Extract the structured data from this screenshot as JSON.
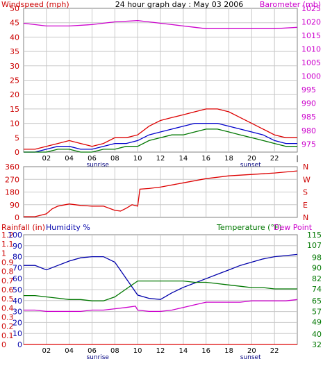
{
  "chart_data": [
    {
      "type": "line",
      "title": "24 hour graph day : May 03 2006",
      "left_label": "Windspeed (mph)",
      "right_label": "Barometer (mb)",
      "x_ticks": [
        "02",
        "04",
        "06",
        "08",
        "10",
        "12",
        "14",
        "16",
        "18",
        "20",
        "22",
        "|"
      ],
      "x_markers": {
        "sunrise": "sunrise",
        "sunset": "sunset"
      },
      "y_left_ticks": [
        "50",
        "45",
        "40",
        "35",
        "30",
        "25",
        "20",
        "15",
        "10",
        "5",
        "0"
      ],
      "y_left_range": [
        0,
        50
      ],
      "y_right_ticks": [
        "1025",
        "1020",
        "1015",
        "1010",
        "1005",
        "1000",
        "995",
        "990",
        "985",
        "980",
        "975"
      ],
      "y_right_range": [
        972,
        1025
      ],
      "grid": true,
      "series": [
        {
          "name": "Barometer (mb)",
          "color": "#cc00cc",
          "axis": "right",
          "x": [
            0,
            2,
            4,
            6,
            8,
            10,
            11,
            12,
            13,
            14,
            15,
            16,
            18,
            20,
            22,
            24
          ],
          "y": [
            1019.5,
            1018.5,
            1018.5,
            1019,
            1020,
            1020.5,
            1020,
            1019.5,
            1019,
            1018.5,
            1018,
            1017.5,
            1017.5,
            1017.5,
            1017.5,
            1018
          ]
        },
        {
          "name": "Windspeed gust",
          "color": "#dd0000",
          "axis": "left",
          "x": [
            0,
            1,
            2,
            3,
            4,
            5,
            6,
            7,
            8,
            9,
            10,
            11,
            12,
            13,
            14,
            15,
            16,
            17,
            18,
            19,
            20,
            21,
            22,
            23,
            24
          ],
          "y": [
            1,
            1,
            2,
            3,
            4,
            3,
            2,
            3,
            5,
            5,
            6,
            9,
            11,
            12,
            13,
            14,
            15,
            15,
            14,
            12,
            10,
            8,
            6,
            5,
            5
          ]
        },
        {
          "name": "Windspeed average",
          "color": "#0000cc",
          "axis": "left",
          "x": [
            0,
            1,
            2,
            3,
            4,
            5,
            6,
            7,
            8,
            9,
            10,
            11,
            12,
            13,
            14,
            15,
            16,
            17,
            18,
            19,
            20,
            21,
            22,
            23,
            24
          ],
          "y": [
            0,
            0,
            1,
            2,
            2,
            1,
            1,
            2,
            3,
            3,
            4,
            6,
            7,
            8,
            9,
            10,
            10,
            10,
            9,
            8,
            7,
            6,
            4,
            3,
            3
          ]
        },
        {
          "name": "Windspeed",
          "color": "#007700",
          "axis": "left",
          "x": [
            0,
            1,
            2,
            3,
            4,
            5,
            6,
            7,
            8,
            9,
            10,
            11,
            12,
            13,
            14,
            15,
            16,
            17,
            18,
            19,
            20,
            21,
            22,
            23,
            24
          ],
          "y": [
            0,
            0,
            0,
            1,
            1,
            0,
            0,
            1,
            1,
            2,
            2,
            4,
            5,
            6,
            6,
            7,
            8,
            8,
            7,
            6,
            5,
            4,
            3,
            2,
            2
          ]
        }
      ]
    },
    {
      "type": "line",
      "left_label": "",
      "right_label": "",
      "y_left_ticks": [
        "360",
        "270",
        "180",
        "90",
        "0"
      ],
      "y_left_range": [
        0,
        360
      ],
      "y_right_ticks": [
        "N",
        "W",
        "S",
        "E",
        "N"
      ],
      "grid": true,
      "series": [
        {
          "name": "Wind direction",
          "color": "#dd0000",
          "axis": "left",
          "x": [
            0,
            1,
            2,
            2.5,
            3,
            4,
            5,
            6,
            7,
            8,
            8.5,
            9,
            9.5,
            10,
            10.2,
            11,
            12,
            14,
            16,
            18,
            20,
            22,
            24
          ],
          "y": [
            5,
            5,
            25,
            60,
            80,
            95,
            85,
            80,
            80,
            50,
            45,
            65,
            90,
            80,
            200,
            205,
            215,
            245,
            275,
            295,
            305,
            315,
            330
          ]
        }
      ]
    },
    {
      "type": "line",
      "left_label_1": "Rainfall (in)",
      "left_label_2": "Humidity %",
      "right_label_1": "Temperature (°F)",
      "right_label_2": "Dew Point",
      "x_ticks": [
        "02",
        "04",
        "06",
        "08",
        "10",
        "12",
        "14",
        "16",
        "18",
        "20",
        "22"
      ],
      "x_markers": {
        "sunrise": "sunrise",
        "sunset": "sunset"
      },
      "y_rain_ticks": [
        "1.2",
        "1.1",
        "1",
        "0.9",
        "0.8",
        "0.7",
        "0.6",
        "0.5",
        "0.4",
        "0.3",
        "0.2",
        "0.1",
        "0"
      ],
      "y_rain_range": [
        0,
        1.2
      ],
      "y_humidity_ticks": [
        "100",
        "90",
        "80",
        "70",
        "60",
        "50",
        "40",
        "30",
        "20",
        "10",
        "0"
      ],
      "y_humidity_range": [
        0,
        100
      ],
      "y_temp_ticks": [
        "115",
        "107",
        "98",
        "90",
        "82",
        "74",
        "65",
        "57",
        "49",
        "40",
        "32"
      ],
      "y_temp_range": [
        32,
        115
      ],
      "grid": true,
      "series": [
        {
          "name": "Humidity %",
          "color": "#0000aa",
          "axis": "humidity",
          "x": [
            0,
            1,
            2,
            3,
            4,
            5,
            6,
            7,
            8,
            9,
            10,
            11,
            12,
            13,
            14,
            15,
            16,
            17,
            18,
            19,
            20,
            21,
            22,
            23,
            24
          ],
          "y": [
            72,
            72,
            68,
            72,
            76,
            79,
            80,
            80,
            75,
            60,
            45,
            42,
            41,
            47,
            52,
            56,
            60,
            64,
            68,
            72,
            75,
            78,
            80,
            81,
            82
          ]
        },
        {
          "name": "Temperature (°F)",
          "color": "#007700",
          "axis": "temp",
          "x": [
            0,
            1,
            2,
            3,
            4,
            5,
            6,
            7,
            8,
            9,
            10,
            11,
            12,
            13,
            14,
            15,
            16,
            17,
            18,
            19,
            20,
            21,
            22,
            23,
            24
          ],
          "y": [
            69,
            69,
            68,
            67,
            66,
            66,
            65,
            65,
            68,
            74,
            80,
            80,
            80,
            80,
            80,
            79,
            79,
            78,
            77,
            76,
            75,
            75,
            74,
            74,
            74
          ]
        },
        {
          "name": "Dew Point",
          "color": "#cc00cc",
          "axis": "temp",
          "x": [
            0,
            1,
            2,
            3,
            4,
            5,
            6,
            7,
            8,
            9,
            9.8,
            10,
            11,
            12,
            13,
            14,
            15,
            16,
            17,
            18,
            19,
            20,
            21,
            22,
            23,
            24
          ],
          "y": [
            58,
            58,
            57,
            57,
            57,
            57,
            58,
            58,
            59,
            60,
            61,
            58,
            57,
            57,
            58,
            60,
            62,
            64,
            64,
            64,
            64,
            65,
            65,
            65,
            65,
            66
          ]
        },
        {
          "name": "Rainfall (in)",
          "color": "#dd0000",
          "axis": "rain",
          "x": [
            0,
            24
          ],
          "y": [
            0,
            0
          ]
        }
      ]
    }
  ]
}
